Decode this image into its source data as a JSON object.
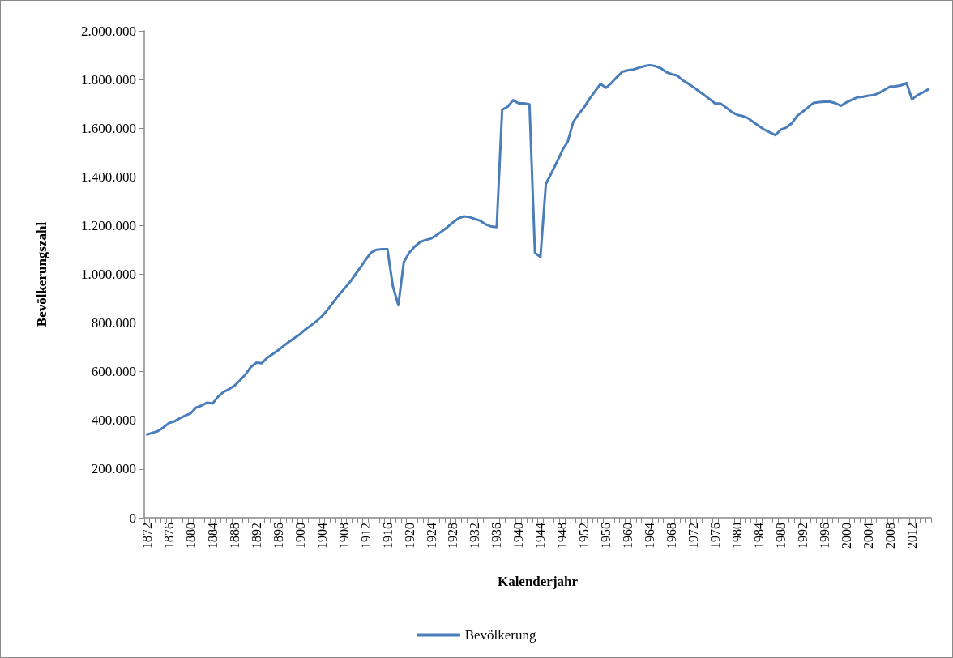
{
  "chart_data": {
    "type": "line",
    "xlabel": "Kalenderjahr",
    "ylabel": "Bevölkerungszahl",
    "categories": [
      "1872",
      null,
      null,
      null,
      "1876",
      null,
      null,
      null,
      "1880",
      null,
      null,
      null,
      "1884",
      null,
      null,
      null,
      "1888",
      null,
      null,
      null,
      "1892",
      null,
      null,
      null,
      "1896",
      null,
      null,
      null,
      "1900",
      null,
      null,
      null,
      "1904",
      null,
      null,
      null,
      "1908",
      null,
      null,
      null,
      "1912",
      null,
      null,
      null,
      "1916",
      null,
      null,
      null,
      "1920",
      null,
      null,
      null,
      "1924",
      null,
      null,
      null,
      "1928",
      null,
      null,
      null,
      "1932",
      null,
      null,
      null,
      "1936",
      null,
      null,
      null,
      "1940",
      null,
      null,
      null,
      "1944",
      null,
      null,
      null,
      "1948",
      null,
      null,
      null,
      "1952",
      null,
      null,
      null,
      "1956",
      null,
      null,
      null,
      "1960",
      null,
      null,
      null,
      "1964",
      null,
      null,
      null,
      "1968",
      null,
      null,
      null,
      "1972",
      null,
      null,
      null,
      "1976",
      null,
      null,
      null,
      "1980",
      null,
      null,
      null,
      "1984",
      null,
      null,
      null,
      "1988",
      null,
      null,
      null,
      "1992",
      null,
      null,
      null,
      "1996",
      null,
      null,
      null,
      "2000",
      null,
      null,
      null,
      "2004",
      null,
      null,
      null,
      "2008",
      null,
      null,
      null,
      "2012",
      null,
      null,
      null
    ],
    "series": [
      {
        "name": "Bevölkerung",
        "color": "#4a7ebb",
        "values": [
          342000,
          349000,
          356000,
          371000,
          389000,
          396000,
          409000,
          420000,
          429000,
          453000,
          461000,
          473000,
          469000,
          497000,
          517000,
          528000,
          542000,
          564000,
          588000,
          619000,
          637000,
          635000,
          657000,
          672000,
          688000,
          706000,
          723000,
          739000,
          754000,
          774000,
          790000,
          807000,
          827000,
          853000,
          882000,
          912000,
          938000,
          964000,
          995000,
          1026000,
          1059000,
          1089000,
          1101000,
          1103000,
          1103000,
          951000,
          873000,
          1050000,
          1089000,
          1114000,
          1133000,
          1141000,
          1147000,
          1161000,
          1177000,
          1194000,
          1213000,
          1230000,
          1238000,
          1235000,
          1227000,
          1220000,
          1205000,
          1196000,
          1194000,
          1676000,
          1688000,
          1715000,
          1702000,
          1702000,
          1698000,
          1088000,
          1071000,
          1371000,
          1415000,
          1460000,
          1509000,
          1545000,
          1625000,
          1658000,
          1686000,
          1721000,
          1752000,
          1782000,
          1766000,
          1786000,
          1810000,
          1832000,
          1838000,
          1841000,
          1848000,
          1855000,
          1859000,
          1855000,
          1847000,
          1831000,
          1822000,
          1817000,
          1797000,
          1784000,
          1769000,
          1752000,
          1736000,
          1719000,
          1701000,
          1701000,
          1685000,
          1667000,
          1655000,
          1650000,
          1641000,
          1625000,
          1609000,
          1594000,
          1583000,
          1572000,
          1594000,
          1603000,
          1620000,
          1651000,
          1668000,
          1686000,
          1704000,
          1707000,
          1709000,
          1709000,
          1703000,
          1692000,
          1706000,
          1717000,
          1727000,
          1729000,
          1734000,
          1736000,
          1745000,
          1758000,
          1771000,
          1772000,
          1776000,
          1786000,
          1719000,
          1736000,
          1747000,
          1760000
        ]
      }
    ],
    "ylim": [
      0,
      2000000
    ],
    "yticks": [
      {
        "value": 0,
        "label": "0"
      },
      {
        "value": 200000,
        "label": "200.000"
      },
      {
        "value": 400000,
        "label": "400.000"
      },
      {
        "value": 600000,
        "label": "600.000"
      },
      {
        "value": 800000,
        "label": "800.000"
      },
      {
        "value": 1000000,
        "label": "1.000.000"
      },
      {
        "value": 1200000,
        "label": "1.200.000"
      },
      {
        "value": 1400000,
        "label": "1.400.000"
      },
      {
        "value": 1600000,
        "label": "1.600.000"
      },
      {
        "value": 1800000,
        "label": "1.800.000"
      },
      {
        "value": 2000000,
        "label": "2.000.000"
      }
    ],
    "grid": false,
    "legend": "bottom",
    "marker": "none",
    "line_style": "solid"
  }
}
